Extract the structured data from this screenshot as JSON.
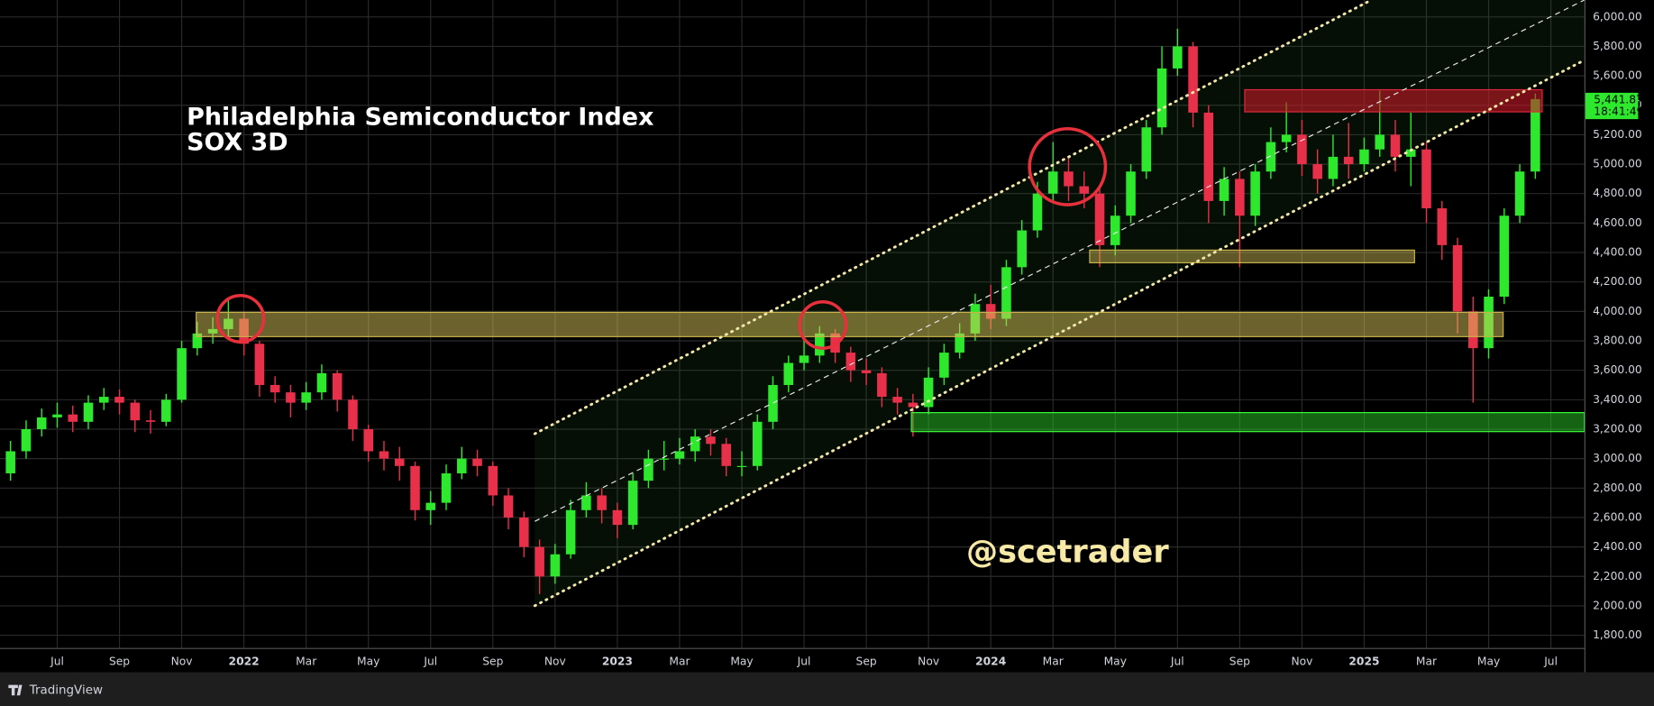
{
  "chart_data": {
    "type": "candlestick",
    "title": "Philadelphia Semiconductor Index",
    "subtitle": "SOX 3D",
    "watermark": "@scetrader",
    "up_color": "#2ee82e",
    "down_color": "#e8304a",
    "grid": true,
    "ylim": [
      1714,
      6115
    ],
    "yticks": [
      {
        "value": 1800,
        "label": "1,800.00"
      },
      {
        "value": 2000,
        "label": "2,000.00"
      },
      {
        "value": 2200,
        "label": "2,200.00"
      },
      {
        "value": 2400,
        "label": "2,400.00"
      },
      {
        "value": 2600,
        "label": "2,600.00"
      },
      {
        "value": 2800,
        "label": "2,800.00"
      },
      {
        "value": 3000,
        "label": "3,000.00"
      },
      {
        "value": 3200,
        "label": "3,200.00"
      },
      {
        "value": 3400,
        "label": "3,400.00"
      },
      {
        "value": 3600,
        "label": "3,600.00"
      },
      {
        "value": 3800,
        "label": "3,800.00"
      },
      {
        "value": 4000,
        "label": "4,000.00"
      },
      {
        "value": 4200,
        "label": "4,200.00"
      },
      {
        "value": 4400,
        "label": "4,400.00"
      },
      {
        "value": 4600,
        "label": "4,600.00"
      },
      {
        "value": 4800,
        "label": "4,800.00"
      },
      {
        "value": 5000,
        "label": "5,000.00"
      },
      {
        "value": 5200,
        "label": "5,200.00"
      },
      {
        "value": 5400,
        "label": "5,400.00"
      },
      {
        "value": 5600,
        "label": "5,600.00"
      },
      {
        "value": 5800,
        "label": "5,800.00"
      },
      {
        "value": 6000,
        "label": "6,000.00"
      }
    ],
    "categories": [
      null,
      null,
      null,
      "Jul",
      null,
      null,
      null,
      "Sep",
      null,
      null,
      null,
      "Nov",
      null,
      null,
      null,
      "2022",
      null,
      null,
      null,
      "Mar",
      null,
      null,
      null,
      "May",
      null,
      null,
      null,
      "Jul",
      null,
      null,
      null,
      "Sep",
      null,
      null,
      null,
      "Nov",
      null,
      null,
      null,
      "2023",
      null,
      null,
      null,
      "Mar",
      null,
      null,
      null,
      "May",
      null,
      null,
      null,
      "Jul",
      null,
      null,
      null,
      "Sep",
      null,
      null,
      null,
      "Nov",
      null,
      null,
      null,
      "2024",
      null,
      null,
      null,
      "Mar",
      null,
      null,
      null,
      "May",
      null,
      null,
      null,
      "Jul",
      null,
      null,
      null,
      "Sep",
      null,
      null,
      null,
      "Nov",
      null,
      null,
      null,
      "2025",
      null,
      null,
      null,
      "Mar",
      null,
      null,
      null,
      "May",
      null,
      null,
      null,
      "Jul"
    ],
    "open": [
      2900,
      3050,
      3200,
      3280,
      3300,
      3250,
      3380,
      3420,
      3380,
      3260,
      3250,
      3400,
      3750,
      3850,
      3880,
      3950,
      3780,
      3500,
      3450,
      3380,
      3450,
      3580,
      3400,
      3200,
      3050,
      3000,
      2950,
      2650,
      2700,
      2900,
      3000,
      2950,
      2750,
      2600,
      2400,
      2200,
      2350,
      2650,
      2750,
      2650,
      2550,
      2850,
      3000,
      3000,
      3050,
      3150,
      3100,
      2950,
      2950,
      3250,
      3500,
      3650,
      3700,
      3850,
      3720,
      3600,
      3580,
      3420,
      3380,
      3350,
      3550,
      3720,
      3850,
      4050,
      3950,
      4300,
      4550,
      4800,
      4950,
      4850,
      4800,
      4450,
      4650,
      4950,
      5250,
      5650,
      5800,
      5350,
      4750,
      4900,
      4650,
      4950,
      5150,
      5200,
      5000,
      4900,
      5050,
      5000,
      5100,
      5200,
      5050,
      5100,
      4700,
      4450,
      4000,
      3750,
      4100,
      4650,
      4950,
      null
    ],
    "high": [
      3120,
      3260,
      3340,
      3380,
      3360,
      3430,
      3480,
      3470,
      3400,
      3330,
      3440,
      3800,
      3930,
      3960,
      4080,
      4000,
      3800,
      3560,
      3500,
      3520,
      3640,
      3600,
      3430,
      3230,
      3120,
      3080,
      2980,
      2780,
      2960,
      3080,
      3060,
      2980,
      2800,
      2640,
      2450,
      2420,
      2720,
      2840,
      2800,
      2700,
      2900,
      3060,
      3120,
      3140,
      3200,
      3200,
      3140,
      3050,
      3300,
      3560,
      3700,
      3800,
      3900,
      3880,
      3760,
      3680,
      3620,
      3480,
      3440,
      3620,
      3780,
      3920,
      4120,
      4180,
      4350,
      4620,
      4880,
      5150,
      5050,
      4950,
      4850,
      4720,
      5000,
      5300,
      5800,
      5920,
      5830,
      5400,
      4980,
      4950,
      5000,
      5250,
      5420,
      5300,
      5100,
      5200,
      5280,
      5180,
      5500,
      5300,
      5350,
      5150,
      4750,
      4500,
      4100,
      4150,
      4700,
      5000,
      5480,
      null
    ],
    "low": [
      2850,
      3000,
      3150,
      3210,
      3180,
      3200,
      3330,
      3300,
      3180,
      3170,
      3220,
      3380,
      3700,
      3780,
      3820,
      3700,
      3420,
      3380,
      3280,
      3330,
      3400,
      3320,
      3120,
      2980,
      2920,
      2850,
      2580,
      2550,
      2650,
      2860,
      2880,
      2680,
      2520,
      2330,
      2080,
      2150,
      2320,
      2600,
      2560,
      2460,
      2520,
      2800,
      2920,
      2960,
      2980,
      3020,
      2880,
      2880,
      2920,
      3200,
      3450,
      3600,
      3650,
      3650,
      3520,
      3500,
      3350,
      3300,
      3150,
      3300,
      3500,
      3680,
      3800,
      3880,
      3900,
      4250,
      4500,
      4750,
      4750,
      4700,
      4300,
      4380,
      4600,
      4900,
      5200,
      5600,
      5250,
      4600,
      4650,
      4300,
      4580,
      4900,
      5080,
      4920,
      4800,
      4850,
      4900,
      4950,
      5050,
      4950,
      4850,
      4600,
      4350,
      3850,
      3380,
      3680,
      4050,
      4600,
      4900,
      null
    ],
    "close": [
      3050,
      3200,
      3280,
      3300,
      3250,
      3380,
      3420,
      3380,
      3260,
      3250,
      3400,
      3750,
      3850,
      3880,
      3950,
      3780,
      3500,
      3450,
      3380,
      3450,
      3580,
      3400,
      3200,
      3050,
      3000,
      2950,
      2650,
      2700,
      2900,
      3000,
      2950,
      2750,
      2600,
      2400,
      2200,
      2350,
      2650,
      2750,
      2650,
      2550,
      2850,
      3000,
      3000,
      3050,
      3150,
      3100,
      2950,
      2950,
      3250,
      3500,
      3650,
      3700,
      3850,
      3720,
      3600,
      3580,
      3420,
      3380,
      3350,
      3550,
      3720,
      3850,
      4050,
      3950,
      4300,
      4550,
      4800,
      4950,
      4850,
      4800,
      4450,
      4650,
      4950,
      5250,
      5650,
      5800,
      5350,
      4750,
      4900,
      4650,
      4950,
      5150,
      5200,
      5000,
      4900,
      5050,
      5000,
      5100,
      5200,
      5050,
      5100,
      4700,
      4450,
      4000,
      3750,
      4100,
      4650,
      4950,
      5441.87,
      null
    ],
    "last_price": {
      "value": 5441.87,
      "label": "5,441.87"
    },
    "countdown": "18:41:49"
  },
  "footer": {
    "brand": "TradingView"
  }
}
